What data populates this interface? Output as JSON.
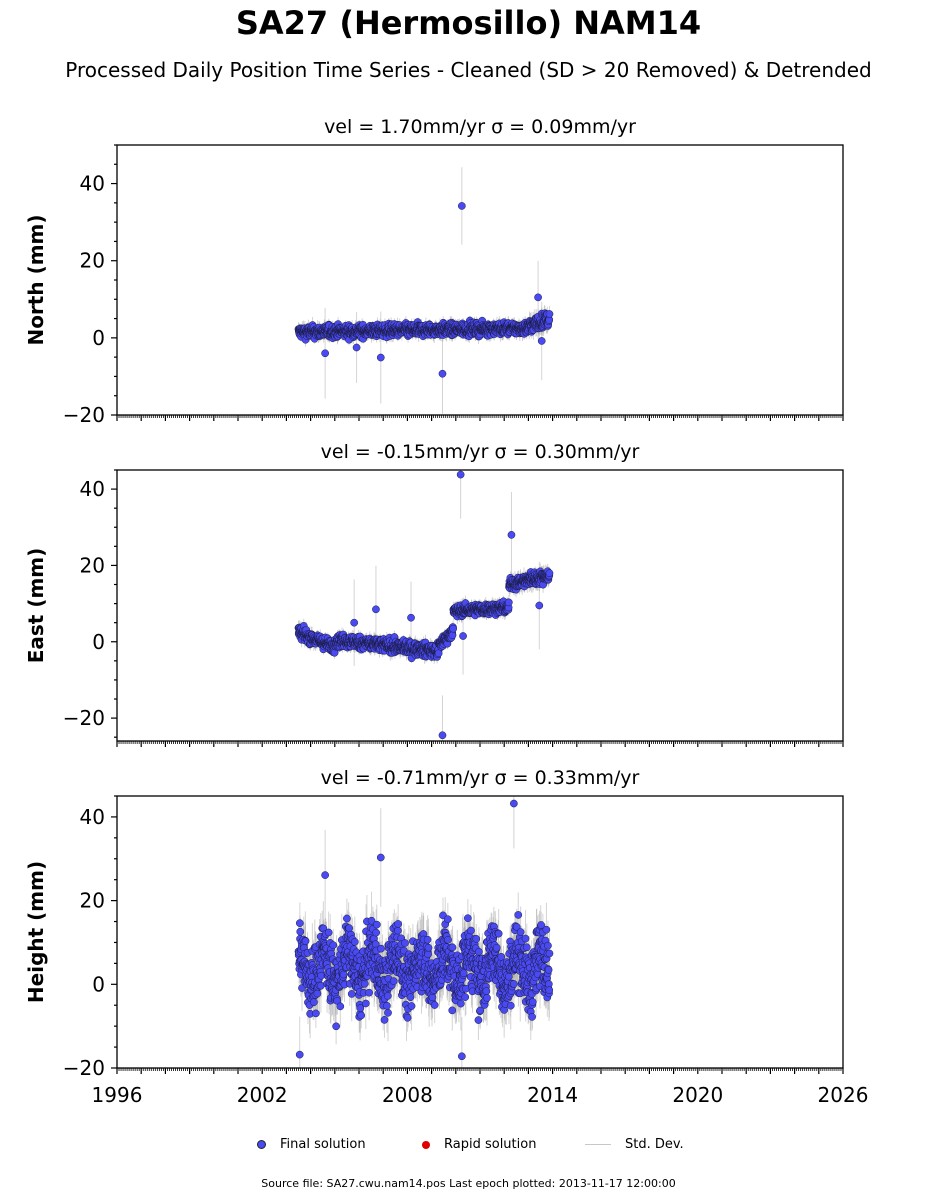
{
  "title": "SA27 (Hermosillo) NAM14",
  "subtitle": "Processed Daily Position Time Series - Cleaned (SD > 20 Removed) & Detrended",
  "footer": "Source file: SA27.cwu.nam14.pos  Last epoch plotted: 2013-11-17 12:00:00",
  "legend": {
    "final": "Final solution",
    "rapid": "Rapid solution",
    "std": "Std. Dev."
  },
  "colors": {
    "final": "#4a4af2",
    "final_edge": "#1a1a40",
    "rapid": "#e00000",
    "std": "#b0b0b0"
  },
  "chart_data": [
    {
      "type": "scatter",
      "title": "vel = 1.70mm/yr   σ = 0.09mm/yr",
      "ylabel": "North (mm)",
      "xlim": [
        1996,
        2026
      ],
      "ylim": [
        -20,
        50
      ],
      "yticks": [
        -20,
        0,
        20,
        40
      ],
      "xticks": [
        1996,
        2002,
        2008,
        2014,
        2020,
        2026
      ],
      "x_range": [
        2003.5,
        2013.88
      ],
      "segments": [
        {
          "t0": 2003.5,
          "t1": 2013.0,
          "y0": 1.5,
          "y1": 2.5,
          "noise": 1.3,
          "sd": 1.5
        },
        {
          "t0": 2013.0,
          "t1": 2013.88,
          "y0": 3.0,
          "y1": 5.0,
          "noise": 1.6,
          "sd": 2.0
        }
      ],
      "outliers": [
        [
          2010.25,
          34.2
        ],
        [
          2009.45,
          -9.3
        ],
        [
          2013.4,
          10.5
        ],
        [
          2006.9,
          -5.1
        ],
        [
          2004.6,
          -4.0
        ],
        [
          2005.9,
          -2.5
        ],
        [
          2013.55,
          -0.8
        ]
      ]
    },
    {
      "type": "scatter",
      "title": "vel = -0.15mm/yr   σ = 0.30mm/yr",
      "ylabel": "East (mm)",
      "xlim": [
        1996,
        2026
      ],
      "ylim": [
        -26,
        45
      ],
      "yticks": [
        -20,
        0,
        20,
        40
      ],
      "xticks": [
        1996,
        2002,
        2008,
        2014,
        2020,
        2026
      ],
      "x_range": [
        2003.5,
        2013.88
      ],
      "segments": [
        {
          "t0": 2003.5,
          "t1": 2005.0,
          "y0": 2.5,
          "y1": -1.5,
          "noise": 1.3,
          "sd": 1.5
        },
        {
          "t0": 2005.0,
          "t1": 2009.3,
          "y0": 0.5,
          "y1": -2.5,
          "noise": 1.4,
          "sd": 1.5
        },
        {
          "t0": 2009.3,
          "t1": 2009.9,
          "y0": -1.0,
          "y1": 3.0,
          "noise": 1.2,
          "sd": 1.5
        },
        {
          "t0": 2009.9,
          "t1": 2012.2,
          "y0": 8.0,
          "y1": 9.0,
          "noise": 1.2,
          "sd": 1.5
        },
        {
          "t0": 2012.2,
          "t1": 2013.88,
          "y0": 15.0,
          "y1": 17.5,
          "noise": 1.3,
          "sd": 1.8
        }
      ],
      "outliers": [
        [
          2010.2,
          43.8
        ],
        [
          2009.45,
          -24.5
        ],
        [
          2012.3,
          28.0
        ],
        [
          2008.15,
          6.3
        ],
        [
          2006.7,
          8.5
        ],
        [
          2013.45,
          9.5
        ],
        [
          2010.3,
          1.5
        ],
        [
          2005.8,
          5.0
        ]
      ]
    },
    {
      "type": "scatter",
      "title": "vel = -0.71mm/yr   σ = 0.33mm/yr",
      "ylabel": "Height (mm)",
      "xlim": [
        1996,
        2026
      ],
      "ylim": [
        -20,
        45
      ],
      "yticks": [
        -20,
        0,
        20,
        40
      ],
      "xticks": [
        1996,
        2002,
        2008,
        2014,
        2020,
        2026
      ],
      "x_range": [
        2003.5,
        2013.88
      ],
      "segments": [
        {
          "t0": 2003.5,
          "t1": 2013.88,
          "y0": 4.0,
          "y1": 4.0,
          "noise": 6.5,
          "sd": 5.0,
          "annual": 4.0
        }
      ],
      "outliers": [
        [
          2012.4,
          43.2
        ],
        [
          2003.55,
          -16.8
        ],
        [
          2010.25,
          -17.2
        ],
        [
          2006.9,
          30.3
        ],
        [
          2004.6,
          26.1
        ]
      ]
    }
  ]
}
